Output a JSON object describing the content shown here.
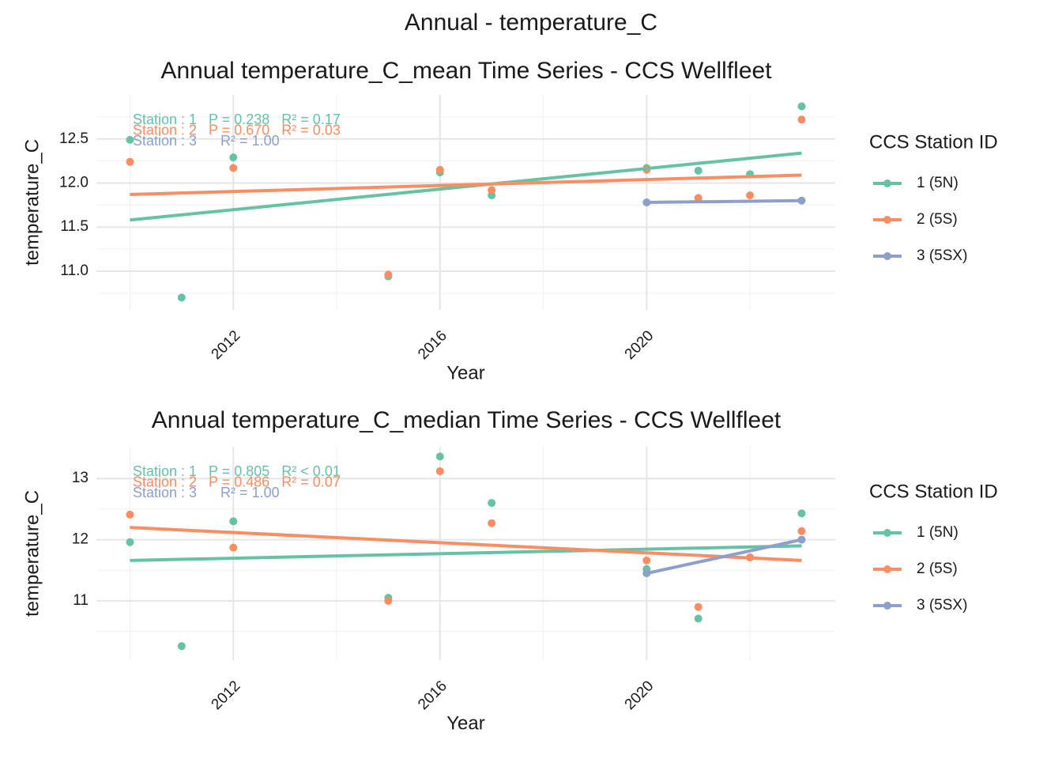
{
  "title": "Annual - temperature_C",
  "chart_data": [
    {
      "type": "scatter",
      "title": "Annual temperature_C_mean Time Series - CCS Wellfleet",
      "x_label": "Year",
      "y_label": "temperature_C",
      "legend_title": "CCS Station ID",
      "legend": "right",
      "grid": true,
      "xlim": [
        2009.35,
        2023.65
      ],
      "xticks": [
        2012,
        2016,
        2020
      ],
      "xminor": [
        2010,
        2014,
        2018,
        2022
      ],
      "ylim": [
        10.56,
        13.0
      ],
      "yticks": [
        {
          "value": 11,
          "label": "11.0"
        },
        11.5,
        {
          "value": 12,
          "label": "12.0"
        },
        12.5
      ],
      "yminor": [
        10.75,
        11.25,
        11.75,
        12.25,
        12.75
      ],
      "series": [
        {
          "name": "1 (5N)",
          "color": "#66c2a5",
          "annotation": "Station : 1   P = 0.238   R² = 0.17",
          "x": [
            2010,
            2011,
            2012,
            2015,
            2016,
            2017,
            2020,
            2021,
            2022,
            2023
          ],
          "values": [
            12.49,
            10.7,
            12.29,
            10.94,
            12.12,
            11.86,
            12.17,
            12.14,
            12.1,
            12.87
          ],
          "fit": {
            "x": [
              2010,
              2023
            ],
            "y": [
              11.58,
              12.34
            ]
          }
        },
        {
          "name": "2 (5S)",
          "color": "#fc8d62",
          "annotation": "Station : 2   P = 0.670   R² = 0.03",
          "x": [
            2010,
            2012,
            2015,
            2016,
            2017,
            2020,
            2021,
            2022,
            2023
          ],
          "values": [
            12.24,
            12.17,
            10.96,
            12.15,
            11.92,
            12.15,
            11.83,
            11.86,
            12.72
          ],
          "fit": {
            "x": [
              2010,
              2023
            ],
            "y": [
              11.87,
              12.09
            ]
          }
        },
        {
          "name": "3 (5SX)",
          "color": "#8da0cb",
          "annotation": "Station : 3      R² = 1.00",
          "x": [
            2020,
            2023
          ],
          "values": [
            11.78,
            11.8
          ],
          "fit": {
            "x": [
              2020,
              2023
            ],
            "y": [
              11.78,
              11.8
            ]
          }
        }
      ]
    },
    {
      "type": "scatter",
      "title": "Annual temperature_C_median Time Series - CCS Wellfleet",
      "x_label": "Year",
      "y_label": "temperature_C",
      "legend_title": "CCS Station ID",
      "legend": "right",
      "grid": true,
      "xlim": [
        2009.35,
        2023.65
      ],
      "xticks": [
        2012,
        2016,
        2020
      ],
      "xminor": [
        2010,
        2014,
        2018,
        2022
      ],
      "ylim": [
        10.03,
        13.52
      ],
      "yticks": [
        11,
        12,
        13
      ],
      "yminor": [
        10.5,
        11.5,
        12.5
      ],
      "series": [
        {
          "name": "1 (5N)",
          "color": "#66c2a5",
          "annotation": "Station : 1   P = 0.805   R² < 0.01",
          "x": [
            2010,
            2011,
            2012,
            2015,
            2016,
            2017,
            2020,
            2021,
            2022,
            2023
          ],
          "values": [
            11.96,
            10.26,
            12.3,
            11.05,
            13.36,
            12.6,
            11.52,
            10.71,
            11.71,
            12.43
          ],
          "fit": {
            "x": [
              2010,
              2023
            ],
            "y": [
              11.66,
              11.9
            ]
          }
        },
        {
          "name": "2 (5S)",
          "color": "#fc8d62",
          "annotation": "Station : 2   P = 0.486   R² = 0.07",
          "x": [
            2010,
            2012,
            2015,
            2016,
            2017,
            2020,
            2021,
            2022,
            2023
          ],
          "values": [
            12.41,
            11.87,
            11.0,
            13.12,
            12.27,
            11.66,
            10.9,
            11.71,
            12.14
          ],
          "fit": {
            "x": [
              2010,
              2023
            ],
            "y": [
              12.2,
              11.66
            ]
          }
        },
        {
          "name": "3 (5SX)",
          "color": "#8da0cb",
          "annotation": "Station : 3      R² = 1.00",
          "x": [
            2020,
            2023
          ],
          "values": [
            11.45,
            12.0
          ],
          "fit": {
            "x": [
              2020,
              2023
            ],
            "y": [
              11.45,
              12.0
            ]
          }
        }
      ]
    }
  ]
}
